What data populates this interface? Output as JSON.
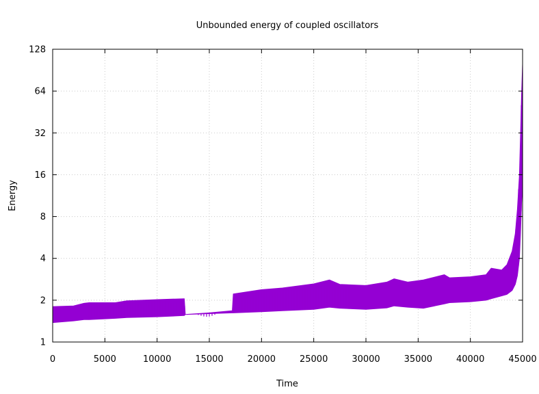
{
  "chart_data": {
    "type": "area",
    "title": "Unbounded energy of coupled oscillators",
    "xlabel": "Time",
    "ylabel": "Energy",
    "xlim": [
      0,
      45000
    ],
    "ylim": [
      1,
      128
    ],
    "yscale": "log2",
    "grid": true,
    "xticks": [
      0,
      5000,
      10000,
      15000,
      20000,
      25000,
      30000,
      35000,
      40000,
      45000
    ],
    "yticks": [
      1,
      2,
      4,
      8,
      16,
      32,
      64,
      128
    ],
    "series_color": "#9400d3",
    "series": [
      {
        "x": [
          0,
          2000,
          3000,
          3500,
          6000,
          7100,
          10000,
          12600,
          12700,
          15000,
          17200,
          17300,
          20000,
          22000,
          25000,
          26500,
          27500,
          30000,
          32000,
          32700,
          34000,
          35500,
          37500,
          38000,
          40000,
          41500,
          42000,
          43000,
          43500,
          44000,
          44300,
          44500,
          44700,
          44800,
          44900,
          45000
        ],
        "low": [
          1.38,
          1.42,
          1.45,
          1.45,
          1.48,
          1.5,
          1.52,
          1.55,
          1.58,
          1.6,
          1.62,
          1.62,
          1.65,
          1.68,
          1.72,
          1.78,
          1.75,
          1.72,
          1.76,
          1.82,
          1.78,
          1.75,
          1.88,
          1.92,
          1.95,
          2.0,
          2.05,
          2.15,
          2.2,
          2.35,
          2.6,
          3.0,
          4.0,
          6.0,
          10.0,
          14.0
        ],
        "high": [
          1.8,
          1.82,
          1.9,
          1.92,
          1.92,
          1.98,
          2.02,
          2.05,
          1.58,
          1.62,
          1.68,
          2.22,
          2.38,
          2.45,
          2.62,
          2.8,
          2.6,
          2.55,
          2.7,
          2.85,
          2.7,
          2.8,
          3.05,
          2.9,
          2.95,
          3.05,
          3.4,
          3.3,
          3.6,
          4.5,
          6.0,
          9.0,
          16.0,
          30.0,
          60.0,
          100.0
        ]
      }
    ]
  }
}
